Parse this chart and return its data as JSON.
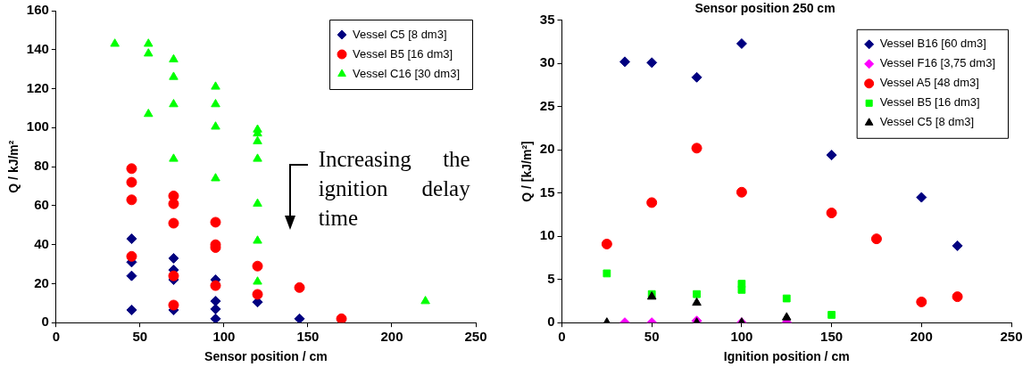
{
  "chart_data": [
    {
      "type": "scatter",
      "xlabel": "Sensor position / cm",
      "ylabel": "Q / kJ/m²",
      "xlim": [
        0,
        250
      ],
      "xticks": [
        0,
        50,
        100,
        150,
        200,
        250
      ],
      "ylim": [
        0,
        160
      ],
      "yticks": [
        0,
        20,
        40,
        60,
        80,
        100,
        120,
        140,
        160
      ],
      "grid": false,
      "legend": "top right",
      "annotations": [
        "Increasing the ignition delay time"
      ],
      "series": [
        {
          "name": "Vessel C5 [8 dm3]",
          "color": "#000080",
          "marker": "diamond",
          "x": [
            45,
            45,
            45,
            45,
            70,
            70,
            70,
            70,
            95,
            95,
            95,
            95,
            120,
            145
          ],
          "values": [
            43,
            31,
            24,
            6.5,
            33,
            27,
            22,
            6.5,
            22,
            11,
            7,
            2,
            10.5,
            2
          ]
        },
        {
          "name": "Vessel B5 [16 dm3]",
          "color": "#ff0000",
          "marker": "circle",
          "x": [
            45,
            45,
            45,
            45,
            70,
            70,
            70,
            70,
            70,
            95,
            95,
            95,
            95,
            120,
            120,
            145,
            170
          ],
          "values": [
            79,
            72,
            63,
            34,
            65,
            61,
            51,
            24,
            9,
            51.5,
            40,
            38.5,
            19,
            29,
            14.5,
            18,
            2
          ]
        },
        {
          "name": "Vessel C16 [30 dm3]",
          "color": "#00ff00",
          "marker": "triangle",
          "x": [
            35,
            55,
            55,
            55,
            70,
            70,
            70,
            70,
            95,
            95,
            95,
            95,
            120,
            120,
            120,
            120,
            120,
            120,
            120,
            220
          ],
          "values": [
            143,
            143,
            138,
            107,
            135,
            126,
            112,
            84,
            121,
            112,
            100.5,
            74,
            99,
            97,
            93,
            84,
            61,
            42,
            21,
            11
          ]
        }
      ]
    },
    {
      "type": "scatter",
      "title": "Sensor position 250 cm",
      "xlabel": "Ignition position / cm",
      "ylabel": "Q / [kJ/m²]",
      "xlim": [
        0,
        250
      ],
      "xticks": [
        0,
        50,
        100,
        150,
        200,
        250
      ],
      "ylim": [
        0,
        35
      ],
      "yticks": [
        0,
        5,
        10,
        15,
        20,
        25,
        30,
        35
      ],
      "grid": false,
      "legend": "top right",
      "series": [
        {
          "name": "Vessel B16 [60 dm3]",
          "color": "#000080",
          "marker": "diamond",
          "x": [
            35,
            50,
            75,
            100,
            150,
            200,
            220
          ],
          "values": [
            30.2,
            30.1,
            28.4,
            32.3,
            19.4,
            14.5,
            8.9
          ]
        },
        {
          "name": "Vessel F16 [3,75 dm3]",
          "color": "#ff00ff",
          "marker": "diamond",
          "x": [
            35,
            50,
            75,
            100,
            125
          ],
          "values": [
            0,
            0,
            0.2,
            0,
            0
          ]
        },
        {
          "name": "Vessel A5 [48 dm3]",
          "color": "#ff0000",
          "marker": "circle",
          "x": [
            25,
            50,
            75,
            100,
            150,
            175,
            200,
            220
          ],
          "values": [
            9.1,
            13.9,
            20.2,
            15.1,
            12.7,
            9.7,
            2.4,
            3
          ]
        },
        {
          "name": "Vessel B5 [16 dm3]",
          "color": "#00ff00",
          "marker": "square",
          "x": [
            25,
            50,
            75,
            100,
            100,
            125,
            150
          ],
          "values": [
            5.7,
            3.3,
            3.3,
            4.5,
            3.8,
            2.8,
            0.9
          ]
        },
        {
          "name": "Vessel C5 [8 dm3]",
          "color": "#000000",
          "marker": "triangle",
          "x": [
            25,
            50,
            75,
            75,
            100,
            125
          ],
          "values": [
            0,
            3,
            2.3,
            0,
            0,
            0.6
          ]
        }
      ]
    }
  ]
}
